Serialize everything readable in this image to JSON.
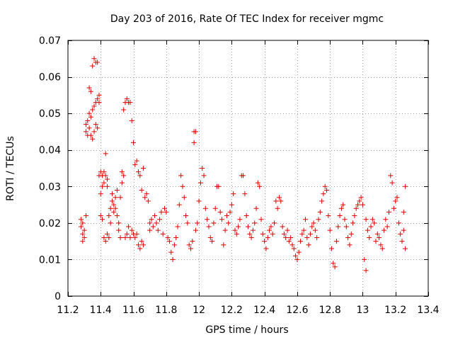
{
  "chart_data": {
    "type": "scatter",
    "title": "Day 203 of 2016, Rate Of TEC Index for receiver mgmc",
    "xlabel": "GPS time / hours",
    "ylabel": "ROTI / TECUs",
    "xlim": [
      11.2,
      13.4
    ],
    "ylim": [
      0,
      0.07
    ],
    "x_ticks": [
      11.2,
      11.4,
      11.6,
      11.8,
      12.0,
      12.2,
      12.4,
      12.6,
      12.8,
      13.0,
      13.2,
      13.4
    ],
    "x_tick_labels": [
      "11.2",
      "11.4",
      "11.6",
      "11.8",
      "12",
      "12.2",
      "12.4",
      "12.6",
      "12.8",
      "13",
      "13.2",
      "13.4"
    ],
    "y_ticks": [
      0,
      0.01,
      0.02,
      0.03,
      0.04,
      0.05,
      0.06,
      0.07
    ],
    "y_tick_labels": [
      "0",
      "0.01",
      "0.02",
      "0.03",
      "0.04",
      "0.05",
      "0.06",
      "0.07"
    ],
    "grid": true,
    "marker": "+",
    "marker_color": "#e00000",
    "series": [
      {
        "name": "ROTI",
        "points": [
          [
            11.28,
            0.021
          ],
          [
            11.28,
            0.019
          ],
          [
            11.29,
            0.017
          ],
          [
            11.29,
            0.015
          ],
          [
            11.3,
            0.018
          ],
          [
            11.3,
            0.016
          ],
          [
            11.31,
            0.022
          ],
          [
            11.29,
            0.02
          ],
          [
            11.31,
            0.047
          ],
          [
            11.31,
            0.045
          ],
          [
            11.32,
            0.044
          ],
          [
            11.32,
            0.048
          ],
          [
            11.33,
            0.046
          ],
          [
            11.33,
            0.05
          ],
          [
            11.34,
            0.044
          ],
          [
            11.34,
            0.049
          ],
          [
            11.35,
            0.043
          ],
          [
            11.35,
            0.051
          ],
          [
            11.36,
            0.052
          ],
          [
            11.36,
            0.045
          ],
          [
            11.37,
            0.053
          ],
          [
            11.37,
            0.047
          ],
          [
            11.38,
            0.054
          ],
          [
            11.38,
            0.046
          ],
          [
            11.39,
            0.055
          ],
          [
            11.39,
            0.053
          ],
          [
            11.33,
            0.057
          ],
          [
            11.34,
            0.056
          ],
          [
            11.35,
            0.063
          ],
          [
            11.36,
            0.065
          ],
          [
            11.37,
            0.064
          ],
          [
            11.38,
            0.064
          ],
          [
            11.39,
            0.033
          ],
          [
            11.4,
            0.034
          ],
          [
            11.4,
            0.028
          ],
          [
            11.41,
            0.033
          ],
          [
            11.41,
            0.03
          ],
          [
            11.42,
            0.034
          ],
          [
            11.42,
            0.031
          ],
          [
            11.43,
            0.033
          ],
          [
            11.43,
            0.039
          ],
          [
            11.44,
            0.032
          ],
          [
            11.44,
            0.03
          ],
          [
            11.4,
            0.022
          ],
          [
            11.41,
            0.021
          ],
          [
            11.42,
            0.016
          ],
          [
            11.43,
            0.015
          ],
          [
            11.44,
            0.017
          ],
          [
            11.45,
            0.016
          ],
          [
            11.45,
            0.022
          ],
          [
            11.46,
            0.024
          ],
          [
            11.46,
            0.02
          ],
          [
            11.47,
            0.026
          ],
          [
            11.47,
            0.028
          ],
          [
            11.48,
            0.025
          ],
          [
            11.48,
            0.023
          ],
          [
            11.49,
            0.024
          ],
          [
            11.49,
            0.027
          ],
          [
            11.5,
            0.029
          ],
          [
            11.5,
            0.022
          ],
          [
            11.51,
            0.02
          ],
          [
            11.51,
            0.018
          ],
          [
            11.52,
            0.016
          ],
          [
            11.52,
            0.027
          ],
          [
            11.53,
            0.031
          ],
          [
            11.53,
            0.034
          ],
          [
            11.54,
            0.033
          ],
          [
            11.54,
            0.051
          ],
          [
            11.55,
            0.053
          ],
          [
            11.56,
            0.054
          ],
          [
            11.57,
            0.053
          ],
          [
            11.58,
            0.053
          ],
          [
            11.59,
            0.048
          ],
          [
            11.6,
            0.042
          ],
          [
            11.55,
            0.016
          ],
          [
            11.56,
            0.017
          ],
          [
            11.57,
            0.019
          ],
          [
            11.58,
            0.016
          ],
          [
            11.59,
            0.018
          ],
          [
            11.6,
            0.017
          ],
          [
            11.61,
            0.016
          ],
          [
            11.62,
            0.017
          ],
          [
            11.63,
            0.014
          ],
          [
            11.64,
            0.013
          ],
          [
            11.65,
            0.015
          ],
          [
            11.66,
            0.014
          ],
          [
            11.61,
            0.036
          ],
          [
            11.62,
            0.037
          ],
          [
            11.63,
            0.034
          ],
          [
            11.64,
            0.033
          ],
          [
            11.65,
            0.029
          ],
          [
            11.66,
            0.035
          ],
          [
            11.67,
            0.027
          ],
          [
            11.68,
            0.028
          ],
          [
            11.69,
            0.026
          ],
          [
            11.7,
            0.02
          ],
          [
            11.7,
            0.018
          ],
          [
            11.71,
            0.021
          ],
          [
            11.72,
            0.019
          ],
          [
            11.73,
            0.022
          ],
          [
            11.74,
            0.02
          ],
          [
            11.75,
            0.018
          ],
          [
            11.76,
            0.021
          ],
          [
            11.77,
            0.023
          ],
          [
            11.78,
            0.017
          ],
          [
            11.79,
            0.024
          ],
          [
            11.8,
            0.023
          ],
          [
            11.81,
            0.016
          ],
          [
            11.82,
            0.015
          ],
          [
            11.83,
            0.012
          ],
          [
            11.84,
            0.01
          ],
          [
            11.85,
            0.014
          ],
          [
            11.86,
            0.016
          ],
          [
            11.87,
            0.019
          ],
          [
            11.88,
            0.025
          ],
          [
            11.89,
            0.033
          ],
          [
            11.9,
            0.03
          ],
          [
            11.91,
            0.027
          ],
          [
            11.92,
            0.022
          ],
          [
            11.93,
            0.02
          ],
          [
            11.94,
            0.014
          ],
          [
            11.95,
            0.013
          ],
          [
            11.96,
            0.015
          ],
          [
            11.97,
            0.042
          ],
          [
            11.97,
            0.045
          ],
          [
            11.98,
            0.045
          ],
          [
            11.98,
            0.018
          ],
          [
            11.99,
            0.02
          ],
          [
            12.0,
            0.026
          ],
          [
            12.01,
            0.031
          ],
          [
            12.02,
            0.035
          ],
          [
            12.03,
            0.033
          ],
          [
            12.04,
            0.024
          ],
          [
            12.05,
            0.021
          ],
          [
            12.06,
            0.019
          ],
          [
            12.07,
            0.016
          ],
          [
            12.08,
            0.015
          ],
          [
            12.09,
            0.02
          ],
          [
            12.1,
            0.024
          ],
          [
            12.11,
            0.03
          ],
          [
            12.12,
            0.03
          ],
          [
            12.13,
            0.023
          ],
          [
            12.14,
            0.021
          ],
          [
            12.15,
            0.014
          ],
          [
            12.16,
            0.018
          ],
          [
            12.17,
            0.022
          ],
          [
            12.18,
            0.02
          ],
          [
            12.19,
            0.023
          ],
          [
            12.2,
            0.025
          ],
          [
            12.21,
            0.028
          ],
          [
            12.22,
            0.018
          ],
          [
            12.23,
            0.017
          ],
          [
            12.24,
            0.019
          ],
          [
            12.25,
            0.021
          ],
          [
            12.26,
            0.033
          ],
          [
            12.27,
            0.033
          ],
          [
            12.28,
            0.028
          ],
          [
            12.29,
            0.022
          ],
          [
            12.3,
            0.019
          ],
          [
            12.31,
            0.017
          ],
          [
            12.32,
            0.016
          ],
          [
            12.33,
            0.018
          ],
          [
            12.34,
            0.02
          ],
          [
            12.35,
            0.024
          ],
          [
            12.36,
            0.031
          ],
          [
            12.37,
            0.03
          ],
          [
            12.38,
            0.021
          ],
          [
            12.39,
            0.017
          ],
          [
            12.4,
            0.015
          ],
          [
            12.41,
            0.013
          ],
          [
            12.42,
            0.016
          ],
          [
            12.43,
            0.018
          ],
          [
            12.44,
            0.019
          ],
          [
            12.45,
            0.017
          ],
          [
            12.46,
            0.02
          ],
          [
            12.47,
            0.026
          ],
          [
            12.48,
            0.024
          ],
          [
            12.49,
            0.027
          ],
          [
            12.5,
            0.026
          ],
          [
            12.51,
            0.019
          ],
          [
            12.52,
            0.017
          ],
          [
            12.53,
            0.016
          ],
          [
            12.54,
            0.018
          ],
          [
            12.55,
            0.015
          ],
          [
            12.56,
            0.016
          ],
          [
            12.57,
            0.014
          ],
          [
            12.58,
            0.013
          ],
          [
            12.59,
            0.011
          ],
          [
            12.6,
            0.01
          ],
          [
            12.61,
            0.012
          ],
          [
            12.62,
            0.015
          ],
          [
            12.63,
            0.017
          ],
          [
            12.64,
            0.018
          ],
          [
            12.65,
            0.021
          ],
          [
            12.66,
            0.016
          ],
          [
            12.67,
            0.014
          ],
          [
            12.68,
            0.017
          ],
          [
            12.69,
            0.019
          ],
          [
            12.7,
            0.02
          ],
          [
            12.71,
            0.018
          ],
          [
            12.72,
            0.016
          ],
          [
            12.73,
            0.021
          ],
          [
            12.74,
            0.023
          ],
          [
            12.75,
            0.026
          ],
          [
            12.76,
            0.028
          ],
          [
            12.77,
            0.03
          ],
          [
            12.78,
            0.029
          ],
          [
            12.79,
            0.022
          ],
          [
            12.8,
            0.018
          ],
          [
            12.81,
            0.013
          ],
          [
            12.82,
            0.009
          ],
          [
            12.83,
            0.008
          ],
          [
            12.84,
            0.015
          ],
          [
            12.85,
            0.019
          ],
          [
            12.86,
            0.022
          ],
          [
            12.87,
            0.024
          ],
          [
            12.88,
            0.025
          ],
          [
            12.89,
            0.021
          ],
          [
            12.9,
            0.019
          ],
          [
            12.91,
            0.016
          ],
          [
            12.92,
            0.014
          ],
          [
            12.93,
            0.017
          ],
          [
            12.94,
            0.02
          ],
          [
            12.95,
            0.022
          ],
          [
            12.96,
            0.024
          ],
          [
            12.97,
            0.025
          ],
          [
            12.98,
            0.026
          ],
          [
            12.99,
            0.027
          ],
          [
            13.0,
            0.025
          ],
          [
            13.01,
            0.01
          ],
          [
            13.02,
            0.007
          ],
          [
            13.02,
            0.021
          ],
          [
            13.03,
            0.018
          ],
          [
            13.04,
            0.016
          ],
          [
            13.05,
            0.019
          ],
          [
            13.06,
            0.021
          ],
          [
            13.07,
            0.02
          ],
          [
            13.08,
            0.015
          ],
          [
            13.09,
            0.017
          ],
          [
            13.1,
            0.016
          ],
          [
            13.11,
            0.014
          ],
          [
            13.12,
            0.013
          ],
          [
            13.13,
            0.018
          ],
          [
            13.14,
            0.021
          ],
          [
            13.15,
            0.019
          ],
          [
            13.16,
            0.023
          ],
          [
            13.17,
            0.033
          ],
          [
            13.18,
            0.031
          ],
          [
            13.19,
            0.024
          ],
          [
            13.2,
            0.026
          ],
          [
            13.21,
            0.027
          ],
          [
            13.22,
            0.02
          ],
          [
            13.23,
            0.017
          ],
          [
            13.24,
            0.015
          ],
          [
            13.25,
            0.018
          ],
          [
            13.26,
            0.013
          ],
          [
            13.26,
            0.03
          ],
          [
            13.25,
            0.023
          ]
        ]
      }
    ]
  }
}
